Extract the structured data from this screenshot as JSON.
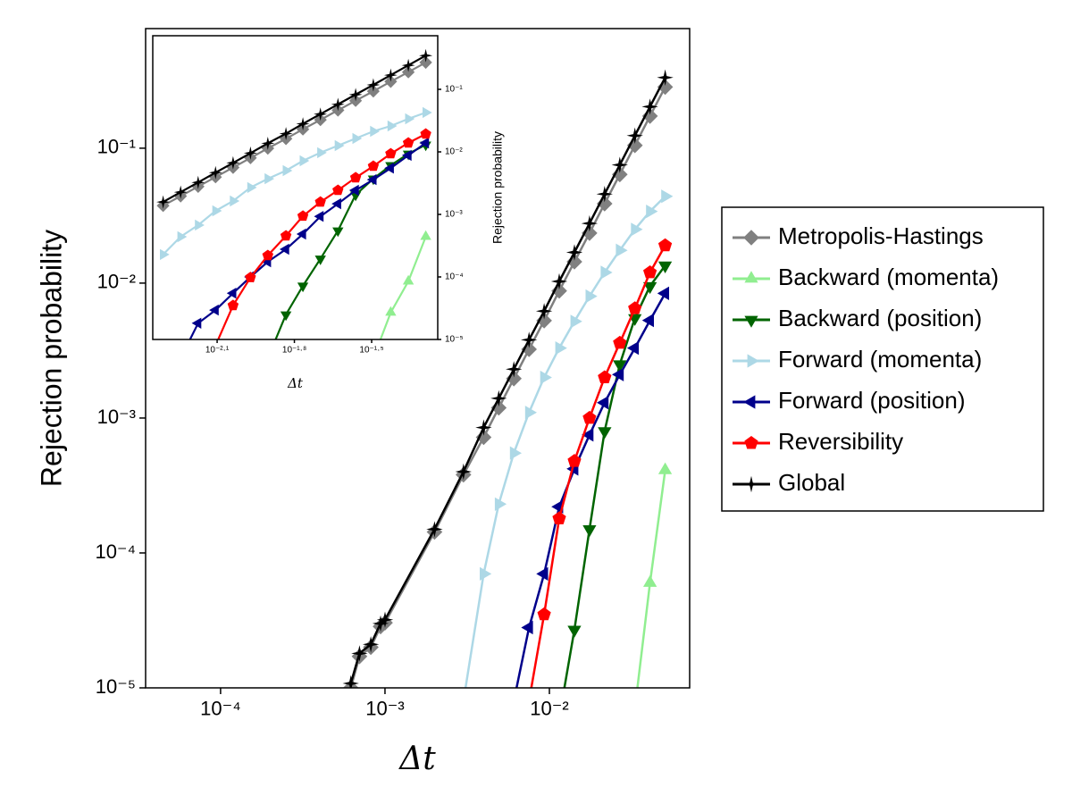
{
  "chart_data": [
    {
      "type": "line",
      "x_label": "Δt",
      "y_label": "Rejection probability",
      "log_x": true,
      "log_y": true,
      "legend": "outside right",
      "x": [
        0.00062,
        0.0007,
        0.00082,
        0.00094,
        0.001,
        0.002,
        0.003,
        0.00398,
        0.00492,
        0.00608,
        0.00752,
        0.00929,
        0.01148,
        0.01419,
        0.01754,
        0.02168,
        0.02679,
        0.03311,
        0.04093,
        0.05058
      ],
      "xlim": [
        3.5e-05,
        0.0713
      ],
      "ylim": [
        1e-05,
        0.77
      ],
      "xticks": [
        {
          "value": 0.0001,
          "label": "10⁻⁴"
        },
        {
          "value": 0.001,
          "label": "10⁻³"
        },
        {
          "value": 0.01,
          "label": "10⁻²"
        }
      ],
      "yticks": [
        {
          "value": 1e-05,
          "label": "10⁻⁵"
        },
        {
          "value": 0.0001,
          "label": "10⁻⁴"
        },
        {
          "value": 0.001,
          "label": "10⁻³"
        },
        {
          "value": 0.01,
          "label": "10⁻²"
        },
        {
          "value": 0.1,
          "label": "10⁻¹"
        }
      ],
      "series": [
        {
          "name": "Metropolis-Hastings",
          "color": "#808080",
          "marker": "diamond",
          "values": [
            1e-05,
            1.71e-05,
            2e-05,
            2.85e-05,
            3.04e-05,
            0.000143,
            0.00038,
            0.00072,
            0.00119,
            0.00196,
            0.00323,
            0.00527,
            0.00876,
            0.0144,
            0.0235,
            0.0388,
            0.0639,
            0.105,
            0.173,
            0.284
          ]
        },
        {
          "name": "Backward (momenta)",
          "color": "#90ee90",
          "marker": "up",
          "values": [
            null,
            null,
            null,
            null,
            null,
            null,
            null,
            null,
            null,
            null,
            null,
            null,
            null,
            null,
            null,
            null,
            null,
            7e-06,
            6e-05,
            0.00041
          ]
        },
        {
          "name": "Backward (position)",
          "color": "#006400",
          "marker": "down",
          "values": [
            null,
            null,
            null,
            null,
            null,
            null,
            null,
            null,
            null,
            null,
            null,
            null,
            6e-06,
            2.7e-05,
            0.00015,
            0.0008,
            0.0025,
            0.0055,
            0.0095,
            0.0135
          ]
        },
        {
          "name": "Forward (momenta)",
          "color": "#add8e6",
          "marker": "right",
          "values": [
            null,
            null,
            null,
            null,
            null,
            null,
            8e-06,
            7e-05,
            0.00023,
            0.00055,
            0.0011,
            0.002,
            0.0033,
            0.0052,
            0.008,
            0.012,
            0.0175,
            0.025,
            0.034,
            0.044
          ]
        },
        {
          "name": "Forward (position)",
          "color": "#00008b",
          "marker": "left",
          "values": [
            null,
            null,
            null,
            null,
            null,
            null,
            null,
            null,
            null,
            8e-06,
            2.8e-05,
            7e-05,
            0.00022,
            0.00042,
            0.00075,
            0.0013,
            0.0021,
            0.0033,
            0.0053,
            0.0084
          ]
        },
        {
          "name": "Reversibility",
          "color": "#ff0000",
          "marker": "pentagon",
          "values": [
            null,
            null,
            null,
            null,
            null,
            null,
            null,
            null,
            null,
            null,
            8e-06,
            3.5e-05,
            0.00018,
            0.00048,
            0.001,
            0.002,
            0.0036,
            0.0065,
            0.012,
            0.019
          ]
        },
        {
          "name": "Global",
          "color": "#000000",
          "marker": "star",
          "values": [
            1.08e-05,
            1.8e-05,
            2.1e-05,
            3e-05,
            3.2e-05,
            0.00015,
            0.0004,
            0.00085,
            0.0014,
            0.0023,
            0.0038,
            0.0062,
            0.0103,
            0.0169,
            0.0277,
            0.0457,
            0.0752,
            0.124,
            0.203,
            0.334
          ]
        }
      ]
    },
    {
      "type": "line",
      "x_label": "Δt",
      "y_label": "Rejection probability",
      "log_x": true,
      "log_y": true,
      "y_axis_side": "right",
      "x": [
        0.0049,
        0.00573,
        0.0067,
        0.00783,
        0.00916,
        0.0107,
        0.0125,
        0.0147,
        0.0171,
        0.02,
        0.0234,
        0.0274,
        0.0321,
        0.0375,
        0.0439,
        0.0513
      ],
      "xlim": [
        0.004467,
        0.0571
      ],
      "ylim": [
        1e-05,
        0.72
      ],
      "xticks": [
        {
          "value": 0.007943,
          "label": "10⁻²·¹"
        },
        {
          "value": 0.015849,
          "label": "10⁻¹·⁸"
        },
        {
          "value": 0.031623,
          "label": "10⁻¹·⁵"
        }
      ],
      "yticks": [
        {
          "value": 1e-05,
          "label": "10⁻⁵"
        },
        {
          "value": 0.0001,
          "label": "10⁻⁴"
        },
        {
          "value": 0.001,
          "label": "10⁻³"
        },
        {
          "value": 0.01,
          "label": "10⁻²"
        },
        {
          "value": 0.1,
          "label": "10⁻¹"
        }
      ],
      "series": [
        {
          "color": "#808080",
          "marker": "diamond",
          "values": [
            0.00138,
            0.00196,
            0.00279,
            0.00396,
            0.00562,
            0.008,
            0.0114,
            0.0162,
            0.023,
            0.0326,
            0.0463,
            0.0659,
            0.0935,
            0.133,
            0.189,
            0.269
          ]
        },
        {
          "color": "#90ee90",
          "marker": "up",
          "values": [
            null,
            null,
            null,
            null,
            null,
            null,
            null,
            null,
            null,
            null,
            null,
            null,
            5e-06,
            2.7e-05,
            8.5e-05,
            0.00044
          ]
        },
        {
          "color": "#006400",
          "marker": "down",
          "values": [
            null,
            null,
            null,
            null,
            null,
            null,
            5e-06,
            2.5e-05,
            7.2e-05,
            0.000195,
            0.00055,
            0.00206,
            0.00372,
            0.0061,
            0.0093,
            0.013
          ]
        },
        {
          "color": "#add8e6",
          "marker": "right",
          "values": [
            0.000228,
            0.00044,
            0.000675,
            0.00114,
            0.00164,
            0.00269,
            0.00372,
            0.00501,
            0.0072,
            0.0097,
            0.0126,
            0.0164,
            0.0213,
            0.026,
            0.0338,
            0.0426
          ]
        },
        {
          "color": "#00008b",
          "marker": "left",
          "values": [
            null,
            5e-06,
            1.82e-05,
            2.95e-05,
            5.5e-05,
            0.0001,
            0.000175,
            0.000277,
            0.000485,
            0.00093,
            0.00148,
            0.00243,
            0.0036,
            0.0055,
            0.0088,
            0.0139
          ]
        },
        {
          "color": "#ff0000",
          "marker": "pentagon",
          "values": [
            null,
            null,
            null,
            8e-06,
            3.5e-05,
            9.8e-05,
            0.00022,
            0.000454,
            0.00094,
            0.00158,
            0.00243,
            0.00386,
            0.0059,
            0.00935,
            0.0139,
            0.0193
          ]
        },
        {
          "color": "#000000",
          "marker": "star",
          "values": [
            0.00158,
            0.00227,
            0.00325,
            0.00466,
            0.00667,
            0.00955,
            0.0137,
            0.0196,
            0.0281,
            0.0402,
            0.0575,
            0.0824,
            0.118,
            0.169,
            0.242,
            0.347
          ]
        }
      ]
    }
  ]
}
